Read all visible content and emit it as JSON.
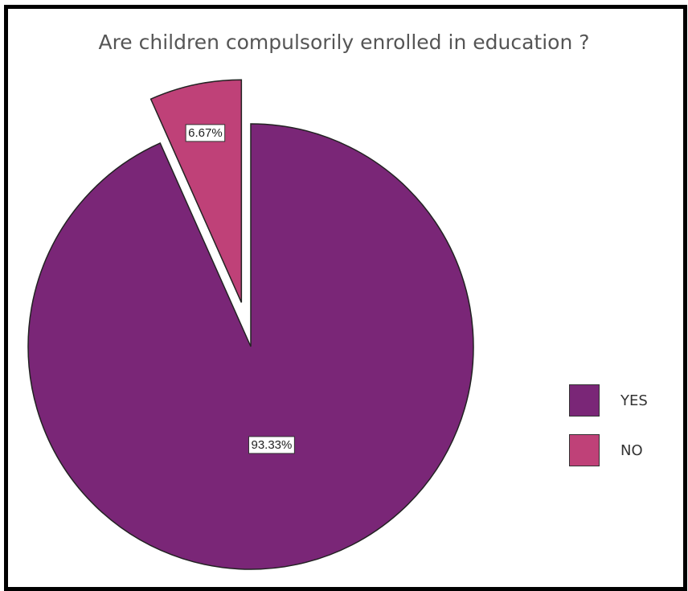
{
  "chart_data": {
    "type": "pie",
    "title": "Are children compulsorily enrolled in education ?",
    "categories": [
      "YES",
      "NO"
    ],
    "values": [
      93.33,
      6.67
    ],
    "data_labels": [
      "93.33%",
      "6.67%"
    ],
    "colors": [
      "#7a2677",
      "#bf4178"
    ],
    "exploded": [
      "NO"
    ],
    "legend_position": "right"
  }
}
